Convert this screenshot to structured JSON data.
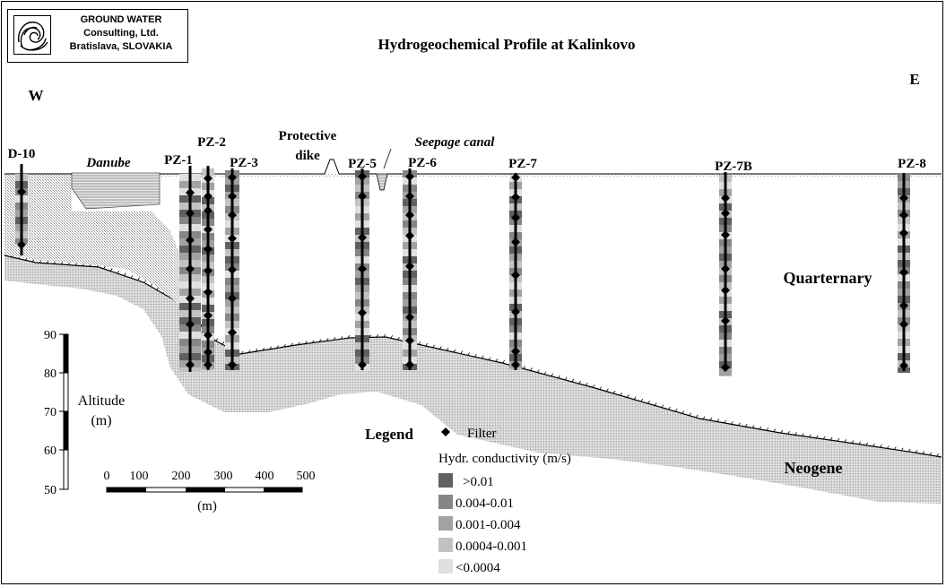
{
  "company": {
    "line1": "GROUND WATER",
    "line2": "Consulting, Ltd.",
    "line3": "Bratislava, SLOVAKIA"
  },
  "title": "Hydrogeochemical Profile at Kalinkovo",
  "directions": {
    "west": "W",
    "east": "E"
  },
  "features": {
    "danube": "Danube",
    "dike_line1": "Protective",
    "dike_line2": "dike",
    "seepage_canal": "Seepage canal"
  },
  "formations": {
    "quaternary": "Quarternary",
    "neogene": "Neogene"
  },
  "wells": [
    "D-10",
    "PZ-1",
    "PZ-2",
    "PZ-3",
    "PZ-5",
    "PZ-6",
    "PZ-7",
    "PZ-7B",
    "PZ-8"
  ],
  "altitude_axis": {
    "label_line1": "Altitude",
    "label_line2": "(m)",
    "ticks": [
      "90",
      "80",
      "70",
      "60",
      "50"
    ]
  },
  "distance_scale": {
    "ticks": [
      "0",
      "100",
      "200",
      "300",
      "400",
      "500"
    ],
    "unit": "(m)"
  },
  "legend": {
    "title": "Legend",
    "filter_label": "Filter",
    "conductivity_title": "Hydr. conductivity (m/s)",
    "classes": [
      {
        "label": ">0.01",
        "color": "#606060"
      },
      {
        "label": "0.004-0.01",
        "color": "#868686"
      },
      {
        "label": "0.001-0.004",
        "color": "#a2a2a2"
      },
      {
        "label": "0.0004-0.001",
        "color": "#c2c2c2"
      },
      {
        "label": "<0.0004",
        "color": "#e0e0e0"
      }
    ]
  }
}
